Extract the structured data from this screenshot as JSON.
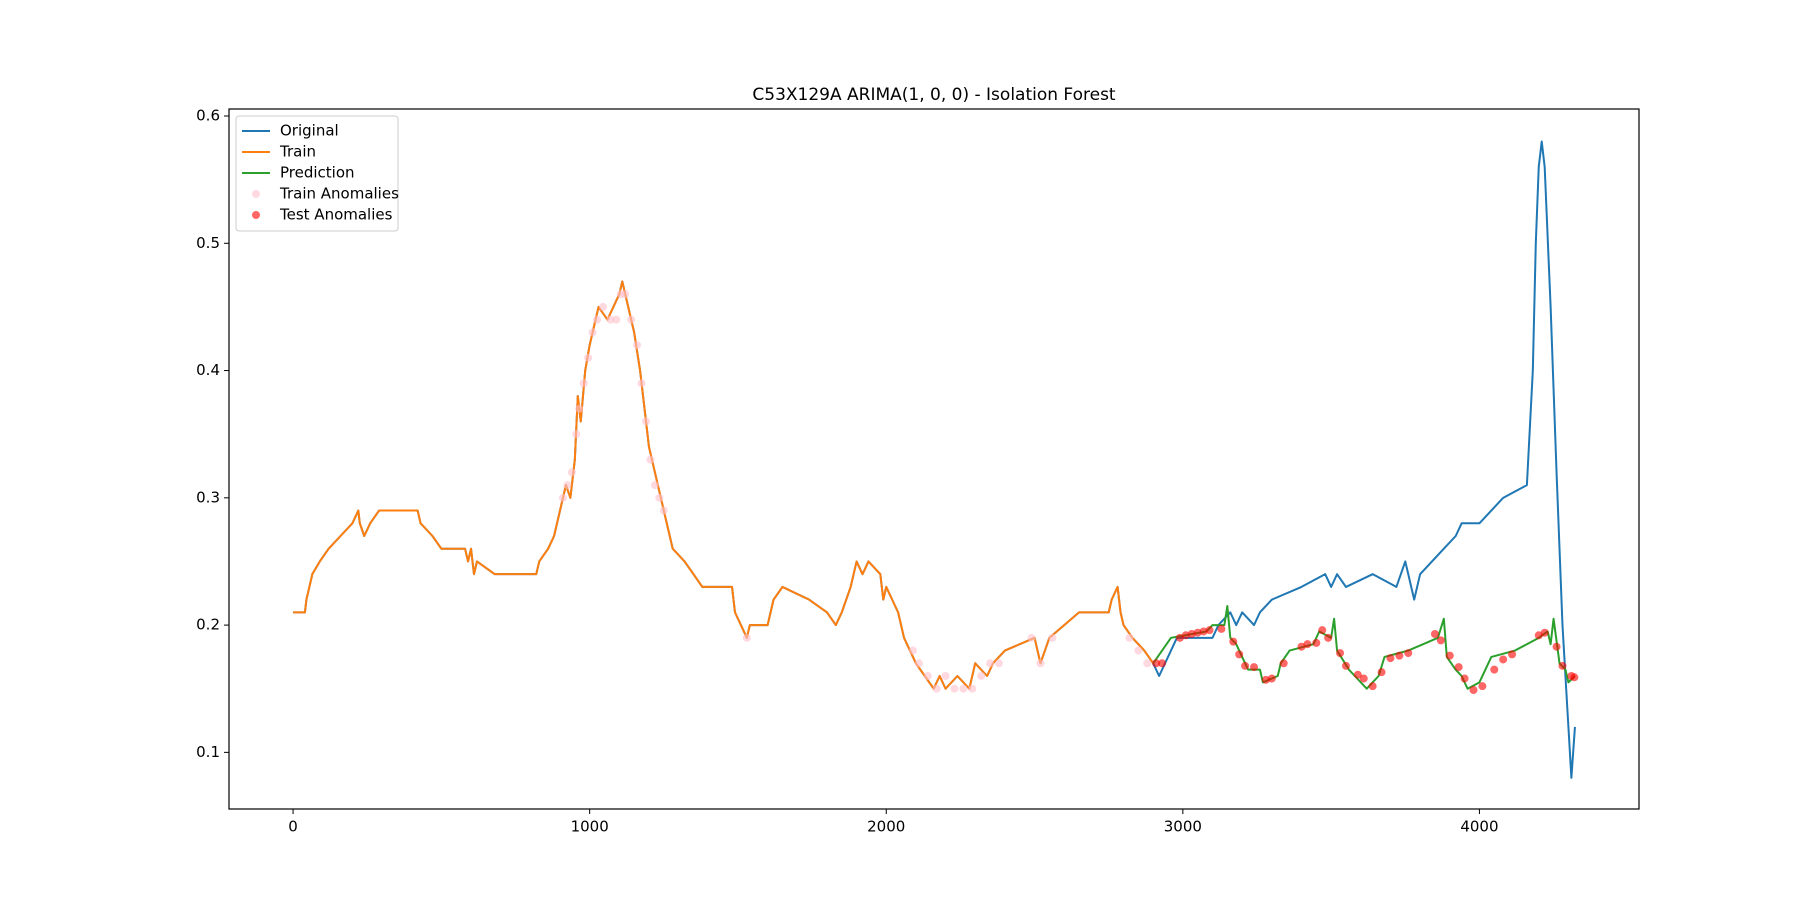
{
  "chart_data": {
    "type": "line",
    "title": "C53X129A ARIMA(1, 0, 0) - Isolation Forest",
    "xlim": [
      -216,
      4538
    ],
    "ylim": [
      0.0555,
      0.6055
    ],
    "xticks": [
      0,
      1000,
      2000,
      3000,
      4000
    ],
    "yticks": [
      0.1,
      0.2,
      0.3,
      0.4,
      0.5,
      0.6
    ],
    "legend": "upper left",
    "series": [
      {
        "name": "Original",
        "style": "line",
        "color": "#1f77b4",
        "x": [
          0,
          40,
          45,
          55,
          65,
          90,
          120,
          160,
          200,
          220,
          225,
          240,
          260,
          290,
          420,
          430,
          470,
          500,
          580,
          590,
          600,
          610,
          620,
          680,
          820,
          830,
          860,
          880,
          900,
          920,
          935,
          950,
          960,
          970,
          985,
          1000,
          1010,
          1030,
          1060,
          1100,
          1110,
          1130,
          1150,
          1170,
          1185,
          1200,
          1220,
          1240,
          1260,
          1280,
          1320,
          1350,
          1380,
          1480,
          1490,
          1510,
          1530,
          1540,
          1600,
          1620,
          1650,
          1740,
          1800,
          1830,
          1850,
          1880,
          1900,
          1920,
          1940,
          1980,
          1990,
          2000,
          2040,
          2060,
          2100,
          2130,
          2160,
          2180,
          2200,
          2240,
          2280,
          2300,
          2340,
          2360,
          2400,
          2500,
          2520,
          2550,
          2600,
          2650,
          2750,
          2760,
          2780,
          2790,
          2800,
          2830,
          2870,
          2900,
          2920,
          2940,
          2960,
          2980,
          3100,
          3120,
          3160,
          3180,
          3200,
          3240,
          3260,
          3300,
          3400,
          3480,
          3500,
          3520,
          3550,
          3640,
          3720,
          3750,
          3780,
          3800,
          3840,
          3880,
          3920,
          3940,
          4000,
          4040,
          4080,
          4160,
          4180,
          4190,
          4200,
          4210,
          4220,
          4240,
          4260,
          4280,
          4300,
          4310,
          4322
        ],
        "values": [
          0.21,
          0.21,
          0.22,
          0.23,
          0.24,
          0.25,
          0.26,
          0.27,
          0.28,
          0.29,
          0.28,
          0.27,
          0.28,
          0.29,
          0.29,
          0.28,
          0.27,
          0.26,
          0.26,
          0.25,
          0.26,
          0.24,
          0.25,
          0.24,
          0.24,
          0.25,
          0.26,
          0.27,
          0.29,
          0.31,
          0.3,
          0.33,
          0.38,
          0.36,
          0.4,
          0.42,
          0.43,
          0.45,
          0.44,
          0.46,
          0.47,
          0.45,
          0.43,
          0.4,
          0.37,
          0.34,
          0.32,
          0.3,
          0.28,
          0.26,
          0.25,
          0.24,
          0.23,
          0.23,
          0.21,
          0.2,
          0.19,
          0.2,
          0.2,
          0.22,
          0.23,
          0.22,
          0.21,
          0.2,
          0.21,
          0.23,
          0.25,
          0.24,
          0.25,
          0.24,
          0.22,
          0.23,
          0.21,
          0.19,
          0.17,
          0.16,
          0.15,
          0.16,
          0.15,
          0.16,
          0.15,
          0.17,
          0.16,
          0.17,
          0.18,
          0.19,
          0.17,
          0.19,
          0.2,
          0.21,
          0.21,
          0.22,
          0.23,
          0.21,
          0.2,
          0.19,
          0.18,
          0.17,
          0.16,
          0.17,
          0.18,
          0.19,
          0.19,
          0.2,
          0.21,
          0.2,
          0.21,
          0.2,
          0.21,
          0.22,
          0.23,
          0.24,
          0.23,
          0.24,
          0.23,
          0.24,
          0.23,
          0.25,
          0.22,
          0.24,
          0.25,
          0.26,
          0.27,
          0.28,
          0.28,
          0.29,
          0.3,
          0.31,
          0.4,
          0.5,
          0.56,
          0.58,
          0.56,
          0.45,
          0.32,
          0.2,
          0.12,
          0.08,
          0.12
        ]
      },
      {
        "name": "Train",
        "style": "line",
        "color": "#ff7f0e",
        "x": [
          0,
          40,
          45,
          55,
          65,
          90,
          120,
          160,
          200,
          220,
          225,
          240,
          260,
          290,
          420,
          430,
          470,
          500,
          580,
          590,
          600,
          610,
          620,
          680,
          820,
          830,
          860,
          880,
          900,
          920,
          935,
          950,
          960,
          970,
          985,
          1000,
          1010,
          1030,
          1060,
          1100,
          1110,
          1130,
          1150,
          1170,
          1185,
          1200,
          1220,
          1240,
          1260,
          1280,
          1320,
          1350,
          1380,
          1480,
          1490,
          1510,
          1530,
          1540,
          1600,
          1620,
          1650,
          1740,
          1800,
          1830,
          1850,
          1880,
          1900,
          1920,
          1940,
          1980,
          1990,
          2000,
          2040,
          2060,
          2100,
          2130,
          2160,
          2180,
          2200,
          2240,
          2280,
          2300,
          2340,
          2360,
          2400,
          2500,
          2520,
          2550,
          2600,
          2650,
          2750,
          2760,
          2780,
          2790,
          2800,
          2830,
          2870,
          2900
        ],
        "values": [
          0.21,
          0.21,
          0.22,
          0.23,
          0.24,
          0.25,
          0.26,
          0.27,
          0.28,
          0.29,
          0.28,
          0.27,
          0.28,
          0.29,
          0.29,
          0.28,
          0.27,
          0.26,
          0.26,
          0.25,
          0.26,
          0.24,
          0.25,
          0.24,
          0.24,
          0.25,
          0.26,
          0.27,
          0.29,
          0.31,
          0.3,
          0.33,
          0.38,
          0.36,
          0.4,
          0.42,
          0.43,
          0.45,
          0.44,
          0.46,
          0.47,
          0.45,
          0.43,
          0.4,
          0.37,
          0.34,
          0.32,
          0.3,
          0.28,
          0.26,
          0.25,
          0.24,
          0.23,
          0.23,
          0.21,
          0.2,
          0.19,
          0.2,
          0.2,
          0.22,
          0.23,
          0.22,
          0.21,
          0.2,
          0.21,
          0.23,
          0.25,
          0.24,
          0.25,
          0.24,
          0.22,
          0.23,
          0.21,
          0.19,
          0.17,
          0.16,
          0.15,
          0.16,
          0.15,
          0.16,
          0.15,
          0.17,
          0.16,
          0.17,
          0.18,
          0.19,
          0.17,
          0.19,
          0.2,
          0.21,
          0.21,
          0.22,
          0.23,
          0.21,
          0.2,
          0.19,
          0.18,
          0.17
        ]
      },
      {
        "name": "Prediction",
        "style": "line",
        "color": "#2ca02c",
        "x": [
          2900,
          2960,
          3080,
          3100,
          3140,
          3150,
          3160,
          3180,
          3200,
          3220,
          3260,
          3270,
          3320,
          3330,
          3360,
          3440,
          3460,
          3500,
          3510,
          3520,
          3560,
          3580,
          3620,
          3660,
          3680,
          3760,
          3860,
          3880,
          3890,
          3920,
          3940,
          3960,
          4000,
          4020,
          4040,
          4120,
          4200,
          4230,
          4240,
          4250,
          4270,
          4290,
          4300,
          4322
        ],
        "values": [
          0.17,
          0.19,
          0.195,
          0.2,
          0.2,
          0.215,
          0.19,
          0.185,
          0.175,
          0.165,
          0.165,
          0.155,
          0.16,
          0.17,
          0.18,
          0.185,
          0.195,
          0.19,
          0.205,
          0.18,
          0.165,
          0.16,
          0.15,
          0.16,
          0.175,
          0.18,
          0.19,
          0.205,
          0.175,
          0.165,
          0.16,
          0.15,
          0.155,
          0.165,
          0.175,
          0.18,
          0.19,
          0.195,
          0.185,
          0.205,
          0.17,
          0.165,
          0.155,
          0.16
        ]
      },
      {
        "name": "Train Anomalies",
        "style": "scatter",
        "color": "#ffc0cb",
        "alpha": 0.6,
        "x": [
          910,
          925,
          940,
          955,
          965,
          980,
          995,
          1010,
          1025,
          1045,
          1070,
          1090,
          1105,
          1120,
          1140,
          1160,
          1175,
          1190,
          1205,
          1220,
          1235,
          1250,
          1530,
          2090,
          2110,
          2140,
          2170,
          2200,
          2230,
          2260,
          2290,
          2320,
          2350,
          2380,
          2490,
          2520,
          2560,
          2820,
          2850,
          2880
        ],
        "values": [
          0.3,
          0.31,
          0.32,
          0.35,
          0.37,
          0.39,
          0.41,
          0.43,
          0.44,
          0.45,
          0.44,
          0.44,
          0.46,
          0.46,
          0.44,
          0.42,
          0.39,
          0.36,
          0.33,
          0.31,
          0.3,
          0.29,
          0.19,
          0.18,
          0.17,
          0.16,
          0.15,
          0.16,
          0.15,
          0.15,
          0.15,
          0.16,
          0.17,
          0.17,
          0.19,
          0.17,
          0.19,
          0.19,
          0.18,
          0.17
        ]
      },
      {
        "name": "Test Anomalies",
        "style": "scatter",
        "color": "#ff0000",
        "alpha": 0.6,
        "x": [
          2910,
          2930,
          2990,
          3010,
          3030,
          3050,
          3070,
          3090,
          3130,
          3170,
          3190,
          3210,
          3240,
          3280,
          3300,
          3340,
          3400,
          3420,
          3450,
          3470,
          3490,
          3530,
          3550,
          3590,
          3610,
          3640,
          3670,
          3700,
          3730,
          3760,
          3850,
          3870,
          3900,
          3930,
          3950,
          3980,
          4010,
          4050,
          4080,
          4110,
          4200,
          4220,
          4260,
          4280,
          4310,
          4320
        ],
        "values": [
          0.17,
          0.17,
          0.19,
          0.192,
          0.193,
          0.194,
          0.195,
          0.196,
          0.197,
          0.187,
          0.177,
          0.168,
          0.167,
          0.157,
          0.158,
          0.17,
          0.183,
          0.185,
          0.186,
          0.196,
          0.19,
          0.178,
          0.168,
          0.161,
          0.158,
          0.152,
          0.163,
          0.174,
          0.176,
          0.178,
          0.193,
          0.188,
          0.176,
          0.167,
          0.158,
          0.149,
          0.152,
          0.165,
          0.173,
          0.177,
          0.192,
          0.194,
          0.183,
          0.168,
          0.16,
          0.159
        ]
      }
    ]
  }
}
